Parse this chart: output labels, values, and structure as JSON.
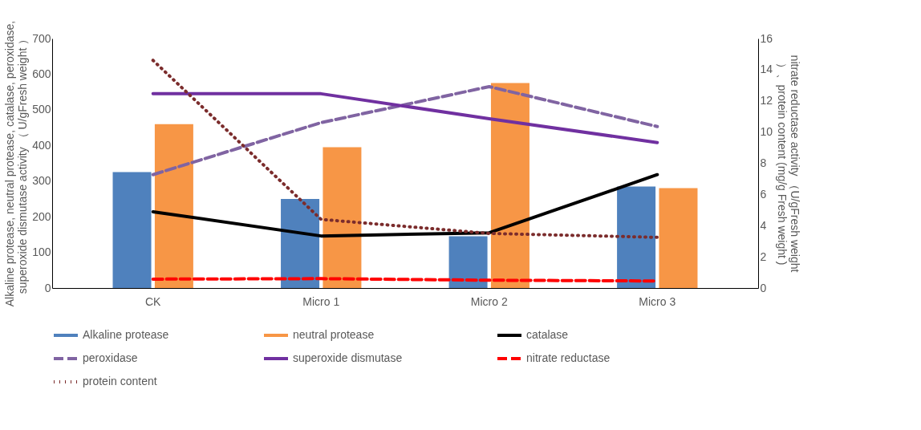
{
  "chart_data": {
    "type": "bar",
    "categories": [
      "CK",
      "Micro 1",
      "Micro 2",
      "Micro 3"
    ],
    "ylabel": "Alkaline protease, neutral protease, catalase, peroxidase, superoxide dismutase activity （ U/gFresh weight ）",
    "y2label": "nitrate reductase activity （U/gFresh weight ）、protein content (mg/g Fresh weight )",
    "ylim": [
      0,
      700
    ],
    "yticks": [
      0,
      100,
      200,
      300,
      400,
      500,
      600,
      700
    ],
    "y2lim": [
      0,
      16
    ],
    "y2ticks": [
      0,
      2,
      4,
      6,
      8,
      10,
      12,
      14,
      16
    ],
    "grid": false,
    "legend": "bottom",
    "series": [
      {
        "name": "Alkaline protease",
        "color": "#4f81bd",
        "values": [
          325,
          250,
          145,
          285
        ]
      },
      {
        "name": "neutral protease",
        "color": "#f79646",
        "values": [
          460,
          395,
          575,
          280
        ]
      },
      {
        "name": "catalase",
        "type": "line",
        "color": "#000000",
        "line_style": "solid",
        "values": [
          214,
          146,
          155,
          318
        ]
      },
      {
        "name": "peroxidase",
        "type": "line",
        "color": "#8064a2",
        "line_style": "dashed",
        "values": [
          318,
          464,
          565,
          453
        ]
      },
      {
        "name": "superoxide dismutase",
        "type": "line",
        "color": "#7030a0",
        "line_style": "solid",
        "values": [
          545,
          545,
          475,
          408
        ]
      },
      {
        "name": "nitrate reductase",
        "type": "line",
        "color": "#ff0000",
        "line_style": "dashed",
        "axis": "y2",
        "values": [
          0.57,
          0.6,
          0.5,
          0.45
        ]
      },
      {
        "name": "protein content",
        "type": "line",
        "color": "#7b2c2c",
        "line_style": "dotted",
        "axis": "y2",
        "values": [
          14.6,
          4.4,
          3.5,
          3.25
        ]
      }
    ]
  }
}
